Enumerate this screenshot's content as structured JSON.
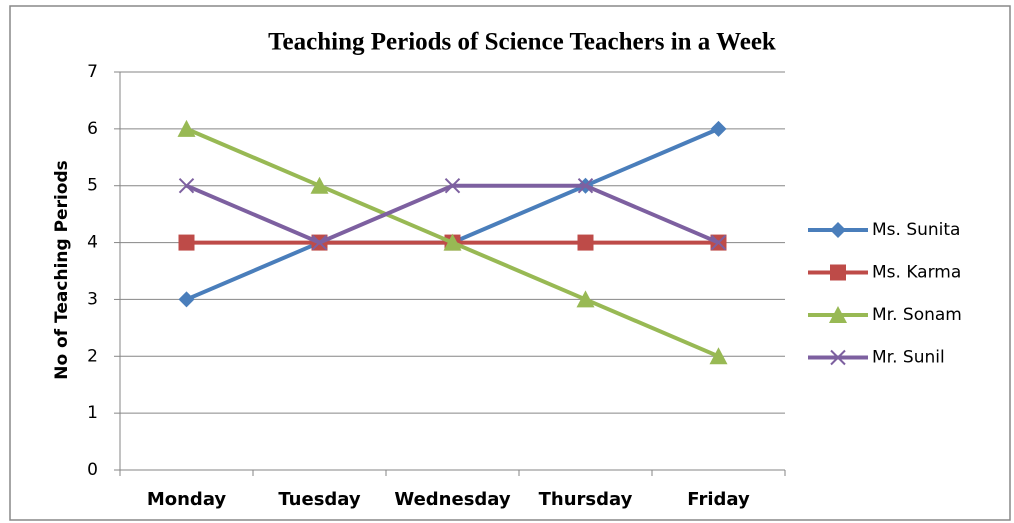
{
  "chart_data": {
    "type": "line",
    "title": "Teaching Periods  of Science Teachers in a Week",
    "y_label": "No of Teaching Periods",
    "categories": [
      "Monday",
      "Tuesday",
      "Wednesday",
      "Thursday",
      "Friday"
    ],
    "series": [
      {
        "name": "Ms. Sunita",
        "color": "#4a7ebb",
        "marker": "diamond",
        "values": [
          3,
          4,
          4,
          5,
          6
        ]
      },
      {
        "name": "Ms. Karma",
        "color": "#be4b48",
        "marker": "square",
        "values": [
          4,
          4,
          4,
          4,
          4
        ]
      },
      {
        "name": "Mr. Sonam",
        "color": "#98b954",
        "marker": "triangle",
        "values": [
          6,
          5,
          4,
          3,
          2
        ]
      },
      {
        "name": "Mr. Sunil",
        "color": "#7d60a0",
        "marker": "x",
        "values": [
          5,
          4,
          5,
          5,
          4
        ]
      }
    ],
    "ylim": [
      0,
      7
    ],
    "yticks": [
      0,
      1,
      2,
      3,
      4,
      5,
      6,
      7
    ],
    "grid": true,
    "legend": "right"
  }
}
